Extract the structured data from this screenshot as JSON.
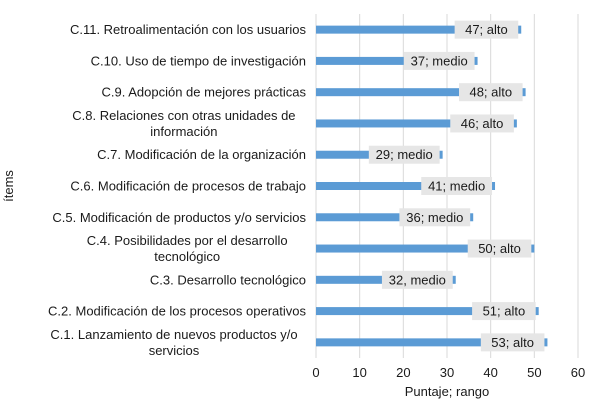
{
  "chart_data": {
    "type": "bar",
    "orientation": "horizontal",
    "categories": [
      [
        "C.11. Retroalimentación con los usuarios"
      ],
      [
        "C.10. Uso de tiempo de investigación"
      ],
      [
        "C.9. Adopción de mejores prácticas"
      ],
      [
        "C.8. Relaciones con otras unidades de",
        "información"
      ],
      [
        "C.7. Modificación de la organización"
      ],
      [
        "C.6. Modificación de procesos de trabajo"
      ],
      [
        "C.5. Modificación de productos y/o servicios"
      ],
      [
        "C.4. Posibilidades por el desarrollo",
        "tecnológico"
      ],
      [
        "C.3. Desarrollo tecnológico"
      ],
      [
        "C.2. Modificación de los procesos operativos"
      ],
      [
        "C.1. Lanzamiento de nuevos productos y/o",
        "servicios"
      ]
    ],
    "values": [
      47,
      37,
      48,
      46,
      29,
      41,
      36,
      50,
      32,
      51,
      53
    ],
    "data_labels": [
      "47; alto",
      "37; medio",
      "48; alto",
      "46; alto",
      "29; medio",
      "41; medio",
      "36; medio",
      "50; alto",
      "32, medio",
      "51; alto",
      "53; alto"
    ],
    "xlabel": "Puntaje; rango",
    "ylabel": "ítems",
    "xlim": [
      0,
      60
    ],
    "xticks": [
      0,
      10,
      20,
      30,
      40,
      50,
      60
    ],
    "grid": true,
    "colors": {
      "bar": "#5b9bd5",
      "grid": "#d9d9d9",
      "label_bg": "#e6e6e6"
    }
  }
}
